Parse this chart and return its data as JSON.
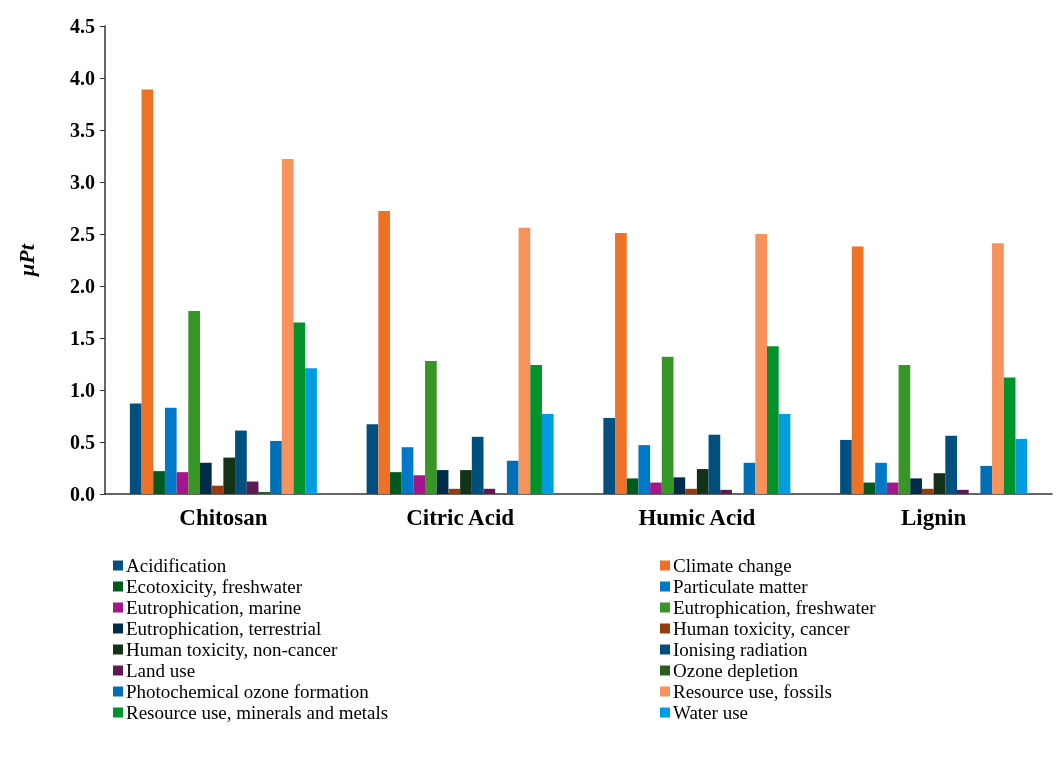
{
  "chart_data": {
    "type": "bar",
    "ylabel": "μPt",
    "categories": [
      "Chitosan",
      "Citric Acid",
      "Humic Acid",
      "Lignin"
    ],
    "ylim": [
      0,
      4.5
    ],
    "yticks": [
      {
        "value": 0,
        "label": "0.0"
      },
      {
        "value": 0.5,
        "label": "0.5"
      },
      {
        "value": 1,
        "label": "1.0"
      },
      {
        "value": 1.5,
        "label": "1.5"
      },
      {
        "value": 2,
        "label": "2.0"
      },
      {
        "value": 2.5,
        "label": "2.5"
      },
      {
        "value": 3,
        "label": "3.0"
      },
      {
        "value": 3.5,
        "label": "3.5"
      },
      {
        "value": 4,
        "label": "4.0"
      },
      {
        "value": 4.5,
        "label": "4.5"
      }
    ],
    "grid": false,
    "legend": "bottom",
    "series": [
      {
        "name": "Acidification",
        "color": "#00507f",
        "values": [
          0.87,
          0.67,
          0.73,
          0.52
        ]
      },
      {
        "name": "Climate change",
        "color": "#ee7128",
        "values": [
          3.89,
          2.72,
          2.51,
          2.38
        ]
      },
      {
        "name": "Ecotoxicity, freshwater",
        "color": "#005a1e",
        "values": [
          0.22,
          0.21,
          0.15,
          0.11
        ]
      },
      {
        "name": "Particulate matter",
        "color": "#0078c8",
        "values": [
          0.83,
          0.45,
          0.47,
          0.3
        ]
      },
      {
        "name": "Eutrophication, marine",
        "color": "#a3178a",
        "values": [
          0.21,
          0.18,
          0.11,
          0.11
        ]
      },
      {
        "name": "Eutrophication, freshwater",
        "color": "#379626",
        "values": [
          1.76,
          1.28,
          1.32,
          1.24
        ]
      },
      {
        "name": "Eutrophication, terrestrial",
        "color": "#002b4b",
        "values": [
          0.3,
          0.23,
          0.16,
          0.15
        ]
      },
      {
        "name": "Human toxicity, cancer",
        "color": "#953d0f",
        "values": [
          0.08,
          0.05,
          0.05,
          0.05
        ]
      },
      {
        "name": "Human toxicity, non-cancer",
        "color": "#133218",
        "values": [
          0.35,
          0.23,
          0.24,
          0.2
        ]
      },
      {
        "name": "Ionising radiation",
        "color": "#004f7c",
        "values": [
          0.61,
          0.55,
          0.57,
          0.56
        ]
      },
      {
        "name": "Land use",
        "color": "#5e1a52",
        "values": [
          0.12,
          0.05,
          0.04,
          0.04
        ]
      },
      {
        "name": "Ozone depletion",
        "color": "#2b5e1f",
        "values": [
          0.02,
          0,
          0,
          0
        ]
      },
      {
        "name": "Photochemical ozone formation",
        "color": "#0070b5",
        "values": [
          0.51,
          0.32,
          0.3,
          0.27
        ]
      },
      {
        "name": "Resource use, fossils",
        "color": "#f7925c",
        "values": [
          3.22,
          2.56,
          2.5,
          2.41
        ]
      },
      {
        "name": "Resource use, minerals and metals",
        "color": "#00932c",
        "values": [
          1.65,
          1.24,
          1.42,
          1.12
        ]
      },
      {
        "name": "Water use",
        "color": "#009ce2",
        "values": [
          1.21,
          0.77,
          0.77,
          0.53
        ]
      }
    ]
  }
}
